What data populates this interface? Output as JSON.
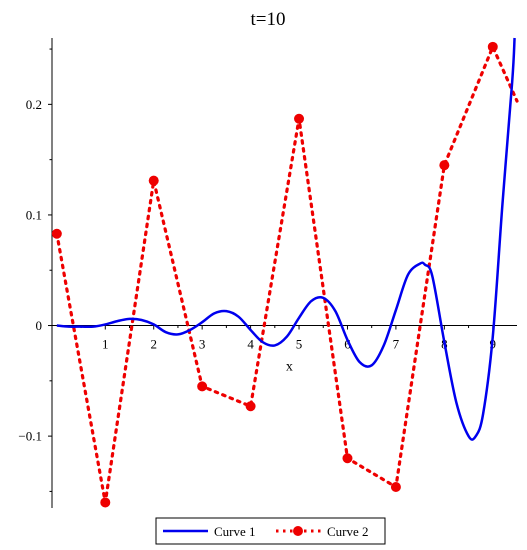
{
  "chart_data": {
    "type": "line",
    "title": "t=10",
    "xlabel": "x",
    "ylabel": "",
    "xlim": [
      -0.1,
      9.5
    ],
    "ylim": [
      -0.165,
      0.26
    ],
    "x_ticks": [
      1,
      2,
      3,
      4,
      5,
      6,
      7,
      8,
      9
    ],
    "x_tick_labels": [
      "1",
      "2",
      "3",
      "4",
      "5",
      "6",
      "7",
      "8",
      "9"
    ],
    "y_ticks": [
      -0.1,
      0,
      0.1,
      0.2
    ],
    "y_tick_labels": [
      "−0.1",
      "0",
      "0.1",
      "0.2"
    ],
    "grid": false,
    "legend_position": "bottom-center",
    "series": [
      {
        "name": "Curve 1",
        "style": "solid",
        "color": "#0000ee",
        "x": [
          0,
          0.25,
          0.5,
          0.75,
          1.0,
          1.25,
          1.5,
          1.75,
          2.0,
          2.25,
          2.5,
          2.75,
          3.0,
          3.25,
          3.5,
          3.75,
          4.0,
          4.25,
          4.5,
          4.75,
          5.0,
          5.25,
          5.5,
          5.75,
          6.0,
          6.25,
          6.5,
          6.75,
          7.0,
          7.25,
          7.5,
          7.6,
          7.75,
          8.0,
          8.25,
          8.5,
          8.65,
          8.8,
          9.0,
          9.2,
          9.4,
          9.45
        ],
        "y": [
          0,
          -0.001,
          -0.001,
          -0.001,
          0.001,
          0.004,
          0.006,
          0.005,
          0.001,
          -0.006,
          -0.008,
          -0.004,
          0.003,
          0.011,
          0.013,
          0.008,
          -0.004,
          -0.015,
          -0.018,
          -0.01,
          0.007,
          0.022,
          0.025,
          0.013,
          -0.013,
          -0.033,
          -0.036,
          -0.018,
          0.014,
          0.046,
          0.056,
          0.055,
          0.045,
          -0.015,
          -0.07,
          -0.1,
          -0.1,
          -0.08,
          -0.01,
          0.11,
          0.22,
          0.26
        ]
      },
      {
        "name": "Curve 2",
        "style": "dotted-markers",
        "color": "#ee0000",
        "x": [
          0,
          1,
          2,
          3,
          4,
          5,
          6,
          7,
          8,
          9,
          9.5
        ],
        "y": [
          0.083,
          -0.16,
          0.131,
          -0.055,
          -0.073,
          0.187,
          -0.12,
          -0.146,
          0.145,
          0.252,
          0.203
        ],
        "markers": [
          true,
          true,
          true,
          true,
          true,
          true,
          true,
          true,
          true,
          true,
          false
        ]
      }
    ]
  }
}
